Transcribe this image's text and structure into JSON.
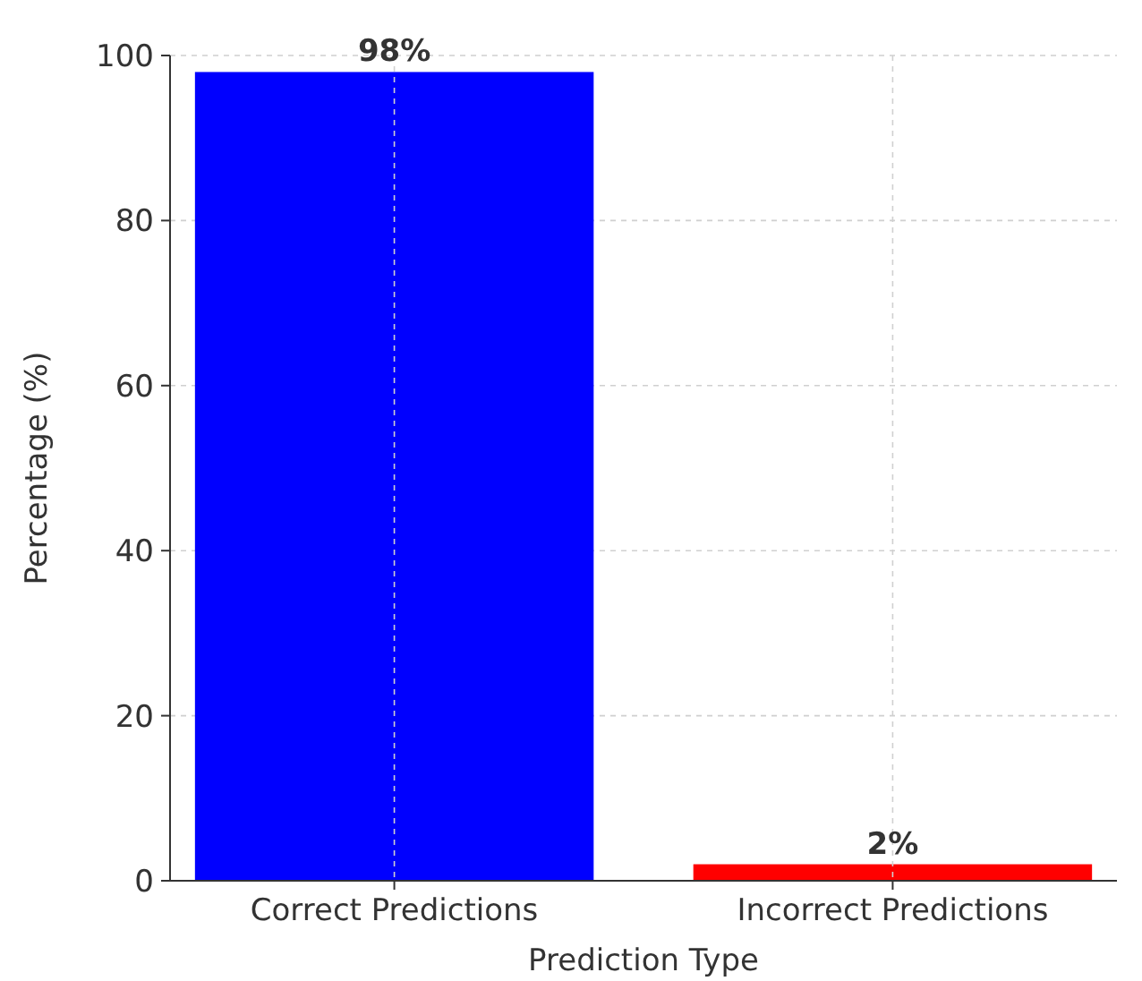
{
  "chart_data": {
    "type": "bar",
    "xlabel": "Prediction Type",
    "ylabel": "Percentage (%)",
    "categories": [
      "Correct Predictions",
      "Incorrect Predictions"
    ],
    "values": [
      98,
      2
    ],
    "colors": [
      "#0000ff",
      "#ff0000"
    ],
    "value_labels": [
      "98%",
      "2%"
    ],
    "ylim": [
      0,
      100
    ],
    "yticks": [
      0,
      20,
      40,
      60,
      80,
      100
    ],
    "grid": true
  }
}
